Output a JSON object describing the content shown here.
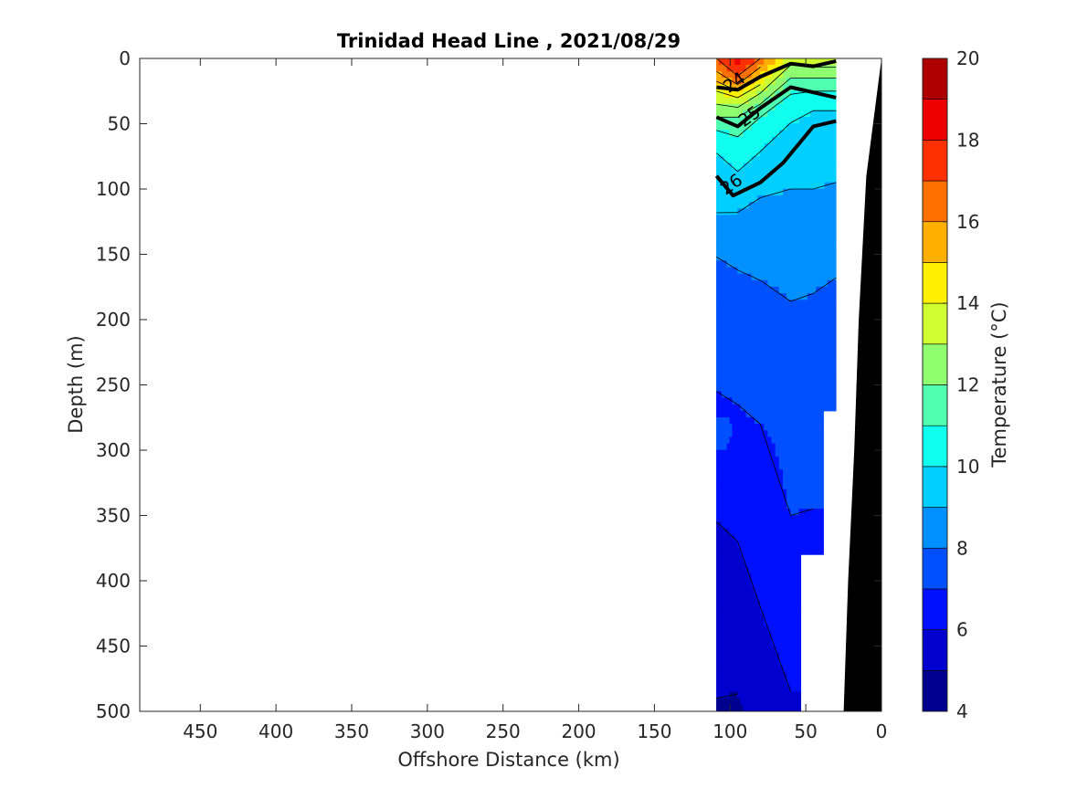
{
  "chart_data": {
    "type": "heatmap",
    "subtype": "filled-contour-section",
    "title": "Trinidad Head Line , 2021/08/29",
    "xlabel": "Offshore Distance (km)",
    "ylabel": "Depth (m)",
    "xlim": [
      490,
      0
    ],
    "ylim": [
      0,
      500
    ],
    "x_reversed": true,
    "y_reversed": true,
    "x_ticks": [
      450,
      400,
      350,
      300,
      250,
      200,
      150,
      100,
      50,
      0
    ],
    "y_ticks": [
      0,
      50,
      100,
      150,
      200,
      250,
      300,
      350,
      400,
      450,
      500
    ],
    "colorbar": {
      "label": "Temperature (°C)",
      "range": [
        4,
        20
      ],
      "step": 1,
      "ticks": [
        4,
        6,
        8,
        10,
        12,
        14,
        16,
        18,
        20
      ],
      "colors": [
        "#00008F",
        "#0000CF",
        "#0010FF",
        "#0050FF",
        "#0090FF",
        "#00CFFF",
        "#10FFEF",
        "#50FFAF",
        "#8FFF70",
        "#CFFF30",
        "#FFEF00",
        "#FFAF00",
        "#FF7000",
        "#FF3000",
        "#EF0000",
        "#AF0000"
      ]
    },
    "grid": false,
    "stations": [
      {
        "x": 109,
        "levels": [
          [
            0,
            17
          ],
          [
            10,
            16
          ],
          [
            25,
            14
          ],
          [
            40,
            12.5
          ],
          [
            60,
            10.5
          ],
          [
            80,
            9.7
          ],
          [
            110,
            9.3
          ],
          [
            140,
            8.2
          ],
          [
            170,
            7.7
          ],
          [
            200,
            7.3
          ],
          [
            240,
            7.1
          ],
          [
            270,
            6.9
          ],
          [
            290,
            7.5
          ],
          [
            310,
            6.7
          ],
          [
            340,
            6.3
          ],
          [
            360,
            5.9
          ],
          [
            420,
            5.5
          ],
          [
            480,
            5.1
          ],
          [
            500,
            4.9
          ]
        ]
      },
      {
        "x": 95,
        "levels": [
          [
            0,
            18.5
          ],
          [
            10,
            17.5
          ],
          [
            20,
            16
          ],
          [
            30,
            14
          ],
          [
            45,
            12
          ],
          [
            60,
            11
          ],
          [
            80,
            10.2
          ],
          [
            100,
            9.6
          ],
          [
            130,
            8.6
          ],
          [
            150,
            8.2
          ],
          [
            180,
            7.7
          ],
          [
            210,
            7.3
          ],
          [
            250,
            7.1
          ],
          [
            280,
            6.9
          ],
          [
            320,
            6.6
          ],
          [
            340,
            6.3
          ],
          [
            370,
            6.0
          ],
          [
            420,
            5.6
          ],
          [
            480,
            5.1
          ],
          [
            500,
            4.8
          ]
        ]
      },
      {
        "x": 80,
        "levels": [
          [
            0,
            17
          ],
          [
            10,
            15.5
          ],
          [
            20,
            14
          ],
          [
            30,
            12.5
          ],
          [
            45,
            11
          ],
          [
            60,
            10.3
          ],
          [
            90,
            9.5
          ],
          [
            120,
            8.6
          ],
          [
            150,
            8.4
          ],
          [
            180,
            7.8
          ],
          [
            220,
            7.5
          ],
          [
            260,
            7.2
          ],
          [
            300,
            6.8
          ],
          [
            340,
            6.6
          ],
          [
            380,
            6.3
          ],
          [
            420,
            6.0
          ],
          [
            470,
            5.6
          ],
          [
            500,
            5.4
          ]
        ]
      },
      {
        "x": 60,
        "levels": [
          [
            0,
            13.5
          ],
          [
            10,
            12.5
          ],
          [
            20,
            11.5
          ],
          [
            35,
            10.5
          ],
          [
            55,
            9.8
          ],
          [
            80,
            9.3
          ],
          [
            100,
            9.0
          ],
          [
            130,
            8.6
          ],
          [
            170,
            8.2
          ],
          [
            210,
            7.7
          ],
          [
            260,
            7.5
          ],
          [
            300,
            7.2
          ],
          [
            350,
            7.0
          ],
          [
            380,
            6.9
          ],
          [
            420,
            6.6
          ],
          [
            470,
            6.1
          ],
          [
            500,
            5.9
          ]
        ]
      },
      {
        "x": 45,
        "levels": [
          [
            0,
            14
          ],
          [
            10,
            12.5
          ],
          [
            25,
            11
          ],
          [
            40,
            10
          ],
          [
            60,
            9.7
          ],
          [
            90,
            9.2
          ],
          [
            110,
            8.8
          ],
          [
            150,
            8.4
          ],
          [
            180,
            8.0
          ],
          [
            230,
            7.7
          ],
          [
            280,
            7.3
          ],
          [
            330,
            7.1
          ],
          [
            360,
            6.9
          ],
          [
            380,
            6.8
          ]
        ]
      },
      {
        "x": 30,
        "levels": [
          [
            0,
            14
          ],
          [
            10,
            12.5
          ],
          [
            25,
            11
          ],
          [
            40,
            10
          ],
          [
            60,
            9.5
          ],
          [
            90,
            9.1
          ],
          [
            110,
            8.7
          ],
          [
            150,
            8.3
          ],
          [
            180,
            7.8
          ],
          [
            220,
            7.5
          ],
          [
            260,
            7.2
          ],
          [
            270,
            7.1
          ]
        ]
      }
    ],
    "bathymetry": [
      [
        0,
        0
      ],
      [
        10,
        90
      ],
      [
        15,
        200
      ],
      [
        18,
        300
      ],
      [
        22,
        400
      ],
      [
        25,
        500
      ]
    ],
    "density_contours": [
      {
        "label": "24",
        "levels_sigma_theta": 24
      },
      {
        "label": "25",
        "levels_sigma_theta": 25
      },
      {
        "label": "26",
        "levels_sigma_theta": 26
      }
    ]
  }
}
